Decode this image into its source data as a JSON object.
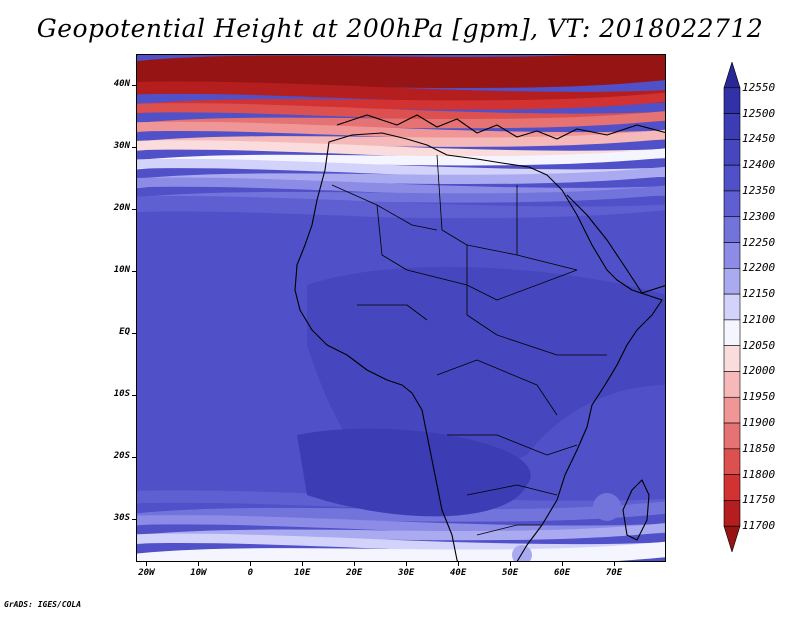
{
  "title": "Geopotential Height at 200hPa [gpm], VT: 2018022712",
  "credit": "GrADS: IGES/COLA",
  "map": {
    "variable": "Geopotential Height",
    "level": "200hPa",
    "units": "gpm",
    "valid_time": "2018022712",
    "lon_range": [
      -22,
      80
    ],
    "lat_range": [
      -37,
      45
    ],
    "lat_labels": [
      {
        "lat": 40,
        "text": "40N"
      },
      {
        "lat": 30,
        "text": "30N"
      },
      {
        "lat": 20,
        "text": "20N"
      },
      {
        "lat": 10,
        "text": "10N"
      },
      {
        "lat": 0,
        "text": "EQ"
      },
      {
        "lat": -10,
        "text": "10S"
      },
      {
        "lat": -20,
        "text": "20S"
      },
      {
        "lat": -30,
        "text": "30S"
      }
    ],
    "lon_labels": [
      {
        "lon": -20,
        "text": "20W"
      },
      {
        "lon": -10,
        "text": "10W"
      },
      {
        "lon": 0,
        "text": "0"
      },
      {
        "lon": 10,
        "text": "10E"
      },
      {
        "lon": 20,
        "text": "20E"
      },
      {
        "lon": 30,
        "text": "30E"
      },
      {
        "lon": 40,
        "text": "40E"
      },
      {
        "lon": 50,
        "text": "50E"
      },
      {
        "lon": 60,
        "text": "60E"
      },
      {
        "lon": 70,
        "text": "70E"
      }
    ]
  },
  "colorbar": {
    "levels": [
      12550,
      12500,
      12450,
      12400,
      12350,
      12300,
      12250,
      12200,
      12150,
      12100,
      12050,
      12000,
      11950,
      11900,
      11850,
      11800,
      11750,
      11700
    ],
    "colors": [
      "#282896",
      "#3232a8",
      "#3c3cb4",
      "#4646be",
      "#5050c8",
      "#5f5fd2",
      "#7373dc",
      "#8c8ce6",
      "#aaaaf0",
      "#d2d2fa",
      "#f5f5ff",
      "#fadcdc",
      "#f5b9b9",
      "#f09696",
      "#e67373",
      "#dc5050",
      "#d23232",
      "#b41e1e",
      "#961414"
    ]
  }
}
